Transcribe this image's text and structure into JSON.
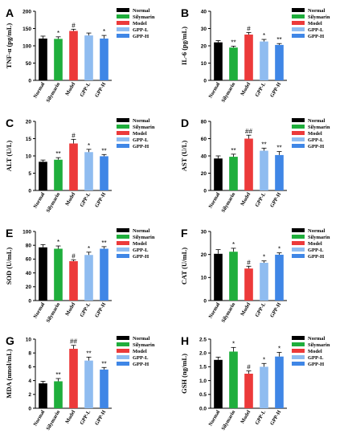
{
  "figure": {
    "legend_labels": [
      "Normal",
      "Silymarin",
      "Model",
      "GPP-L",
      "GPP-H"
    ],
    "colors": {
      "Normal": "#000000",
      "Silymarin": "#1fae3c",
      "Model": "#ec3a3a",
      "GPP-L": "#8fbcf0",
      "GPP-H": "#3f86e6"
    }
  },
  "chart_data": [
    {
      "panel": "A",
      "type": "bar",
      "ylabel": "TNF-α (pg/mL)",
      "categories": [
        "Normal",
        "Silymarin",
        "Model",
        "GPP-L",
        "GPP-H"
      ],
      "values": [
        121,
        120,
        143,
        130,
        121
      ],
      "errors": [
        7,
        6,
        5,
        7,
        9
      ],
      "significance": [
        "",
        "*",
        "#",
        "",
        "*"
      ],
      "ylim": [
        0,
        200
      ],
      "yticks": [
        0,
        50,
        100,
        150,
        200
      ]
    },
    {
      "panel": "B",
      "type": "bar",
      "ylabel": "IL-6 (pg/mL)",
      "categories": [
        "Normal",
        "Silymarin",
        "Model",
        "GPP-L",
        "GPP-H"
      ],
      "values": [
        22,
        19,
        26.5,
        22.5,
        20.5
      ],
      "errors": [
        1,
        0.8,
        1.2,
        1.2,
        0.8
      ],
      "significance": [
        "",
        "**",
        "#",
        "*",
        "**"
      ],
      "ylim": [
        0,
        40
      ],
      "yticks": [
        0,
        10,
        20,
        30,
        40
      ]
    },
    {
      "panel": "C",
      "type": "bar",
      "ylabel": "ALT (U/L)",
      "categories": [
        "Normal",
        "Silymarin",
        "Model",
        "GPP-L",
        "GPP-H"
      ],
      "values": [
        8.3,
        8.9,
        13.6,
        11.1,
        9.9
      ],
      "errors": [
        0.5,
        0.6,
        1.2,
        0.8,
        0.5
      ],
      "significance": [
        "",
        "**",
        "#",
        "*",
        "**"
      ],
      "ylim": [
        0,
        20
      ],
      "yticks": [
        0,
        5,
        10,
        15,
        20
      ]
    },
    {
      "panel": "D",
      "type": "bar",
      "ylabel": "AST (U/L)",
      "categories": [
        "Normal",
        "Silymarin",
        "Model",
        "GPP-L",
        "GPP-H"
      ],
      "values": [
        37,
        39,
        60,
        46,
        41
      ],
      "errors": [
        3,
        3,
        4,
        3,
        4
      ],
      "significance": [
        "",
        "**",
        "##",
        "**",
        "**"
      ],
      "ylim": [
        0,
        80
      ],
      "yticks": [
        0,
        20,
        40,
        60,
        80
      ]
    },
    {
      "panel": "E",
      "type": "bar",
      "ylabel": "SOD (U/mL)",
      "categories": [
        "Normal",
        "Silymarin",
        "Model",
        "GPP-L",
        "GPP-H"
      ],
      "values": [
        77,
        75,
        57,
        66,
        75
      ],
      "errors": [
        4,
        4,
        2,
        4,
        3
      ],
      "significance": [
        "",
        "*",
        "#",
        "*",
        "**"
      ],
      "ylim": [
        0,
        100
      ],
      "yticks": [
        0,
        20,
        40,
        60,
        80,
        100
      ]
    },
    {
      "panel": "F",
      "type": "bar",
      "ylabel": "CAT (U/mL)",
      "categories": [
        "Normal",
        "Silymarin",
        "Model",
        "GPP-L",
        "GPP-H"
      ],
      "values": [
        20.3,
        21.2,
        13.9,
        16.4,
        19.9
      ],
      "errors": [
        1.8,
        1.5,
        1,
        0.8,
        0.8
      ],
      "significance": [
        "",
        "*",
        "#",
        "*",
        "*"
      ],
      "ylim": [
        0,
        30
      ],
      "yticks": [
        0,
        10,
        20,
        30
      ]
    },
    {
      "panel": "G",
      "type": "bar",
      "ylabel": "MDA (nmol/mL)",
      "categories": [
        "Normal",
        "Silymarin",
        "Model",
        "GPP-L",
        "GPP-H"
      ],
      "values": [
        3.6,
        3.9,
        8.6,
        6.9,
        5.6
      ],
      "errors": [
        0.3,
        0.4,
        0.5,
        0.5,
        0.3
      ],
      "significance": [
        "",
        "**",
        "##",
        "**",
        "**"
      ],
      "ylim": [
        0,
        10
      ],
      "yticks": [
        0,
        2,
        4,
        6,
        8,
        10
      ]
    },
    {
      "panel": "H",
      "type": "bar",
      "ylabel": "GSH (ng/mL)",
      "categories": [
        "Normal",
        "Silymarin",
        "Model",
        "GPP-L",
        "GPP-H"
      ],
      "values": [
        1.75,
        2.05,
        1.25,
        1.5,
        1.87
      ],
      "errors": [
        0.1,
        0.15,
        0.1,
        0.12,
        0.15
      ],
      "significance": [
        "",
        "*",
        "#",
        "*",
        "*"
      ],
      "ylim": [
        0,
        2.5
      ],
      "yticks": [
        0,
        0.5,
        1.0,
        1.5,
        2.0,
        2.5
      ]
    }
  ]
}
